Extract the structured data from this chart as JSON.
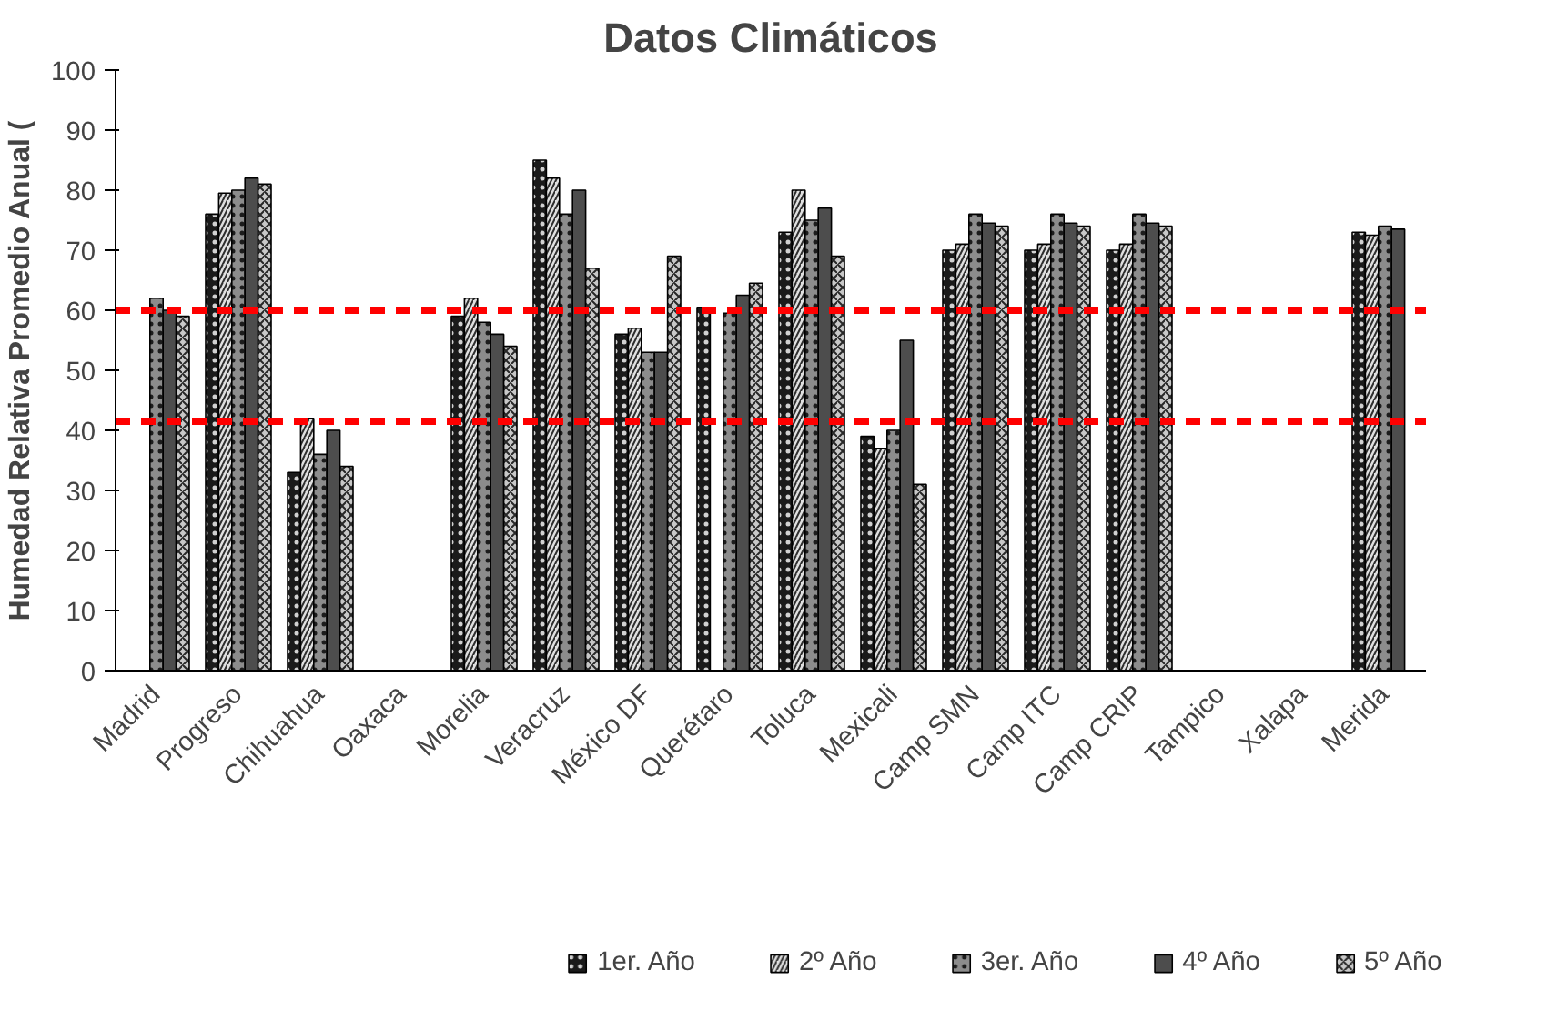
{
  "chart_data": {
    "type": "bar",
    "title": "Datos Climáticos",
    "ylabel": "Humedad Relativa Promedio Anual (",
    "categories": [
      "Madrid",
      "Progreso",
      "Chihuahua",
      "Oaxaca",
      "Morelia",
      "Veracruz",
      "México DF",
      "Querétaro",
      "Toluca",
      "Mexicali",
      "Camp SMN",
      "Camp ITC",
      "Camp CRIP",
      "Tampico",
      "Xalapa",
      "Merida"
    ],
    "series": [
      {
        "name": "1er. Año",
        "color": "#1a1a1a",
        "values": [
          null,
          76,
          33,
          null,
          59,
          85,
          56,
          60.5,
          73,
          39,
          70,
          70,
          70,
          null,
          null,
          73
        ]
      },
      {
        "name": "2º Año",
        "color": "#e0e0e0",
        "values": [
          null,
          79.5,
          42,
          null,
          62,
          82,
          57,
          null,
          80,
          37,
          71,
          71,
          71,
          null,
          null,
          72.5
        ]
      },
      {
        "name": "3er. Año",
        "color": "#8c8c8c",
        "values": [
          62,
          80,
          36,
          null,
          58,
          76,
          53,
          59.5,
          75,
          40,
          76,
          76,
          76,
          null,
          null,
          74
        ]
      },
      {
        "name": "4º Año",
        "color": "#4d4d4d",
        "values": [
          60,
          82,
          40,
          null,
          56,
          80,
          53,
          62.5,
          77,
          55,
          74.5,
          74.5,
          74.5,
          null,
          null,
          73.5
        ]
      },
      {
        "name": "5º Año",
        "color": "#c8c8c8",
        "values": [
          59,
          81,
          34,
          null,
          54,
          67,
          69,
          64.5,
          69,
          31,
          74,
          74,
          74,
          null,
          null,
          null
        ]
      }
    ],
    "ylim": [
      0,
      100
    ],
    "yticks": [
      0,
      10,
      20,
      30,
      40,
      50,
      60,
      70,
      80,
      90,
      100
    ],
    "grid": false,
    "legend": "bottom",
    "ref_lines": [
      {
        "axis": "y",
        "value": 60,
        "color": "#ff0000",
        "line_style": "dashed"
      },
      {
        "axis": "y",
        "value": 41.5,
        "color": "#ff0000",
        "line_style": "dashed"
      }
    ]
  }
}
